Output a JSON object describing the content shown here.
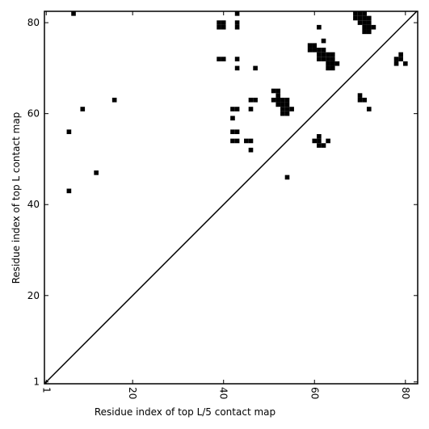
{
  "chart_data": {
    "type": "scatter",
    "marker": "square",
    "color": "#000000",
    "xlabel": "Residue index of top L/5 contact map",
    "ylabel": "Residue index of top L contact map",
    "xlim": [
      0.6,
      82.7
    ],
    "ylim": [
      0.6,
      82.5
    ],
    "xticks": [
      1,
      20,
      40,
      60,
      80
    ],
    "yticks": [
      1,
      20,
      40,
      60,
      80
    ],
    "x": [
      7,
      6,
      6,
      9,
      12,
      16,
      39,
      40,
      39,
      40,
      39,
      40,
      43,
      43,
      43,
      43,
      43,
      47,
      42,
      43,
      42,
      42,
      43,
      42,
      43,
      45,
      46,
      46,
      46,
      46,
      47,
      54,
      51,
      52,
      52,
      51,
      52,
      53,
      54,
      52,
      53,
      54,
      53,
      54,
      55,
      53,
      54,
      60,
      61,
      61,
      61,
      62,
      63,
      61,
      62,
      59,
      60,
      59,
      60,
      61,
      62,
      61,
      62,
      63,
      64,
      61,
      62,
      63,
      64,
      63,
      64,
      65,
      63,
      64,
      69,
      70,
      71,
      69,
      70,
      71,
      72,
      70,
      71,
      72,
      71,
      72,
      73,
      71,
      72,
      70,
      70,
      71,
      72,
      78,
      79,
      79,
      78,
      80
    ],
    "y": [
      82,
      56,
      43,
      61,
      47,
      63,
      80,
      80,
      79,
      79,
      72,
      72,
      82,
      80,
      79,
      72,
      70,
      70,
      61,
      61,
      59,
      56,
      56,
      54,
      54,
      54,
      54,
      52,
      61,
      63,
      63,
      46,
      65,
      65,
      64,
      63,
      63,
      63,
      63,
      62,
      62,
      62,
      61,
      61,
      61,
      60,
      60,
      54,
      54,
      55,
      53,
      53,
      54,
      79,
      76,
      75,
      75,
      74,
      74,
      74,
      74,
      73,
      73,
      73,
      73,
      72,
      72,
      72,
      72,
      71,
      71,
      71,
      70,
      70,
      82,
      82,
      82,
      81,
      81,
      81,
      81,
      80,
      80,
      80,
      79,
      79,
      79,
      78,
      78,
      64,
      63,
      63,
      61,
      72,
      72,
      73,
      71,
      71
    ]
  }
}
